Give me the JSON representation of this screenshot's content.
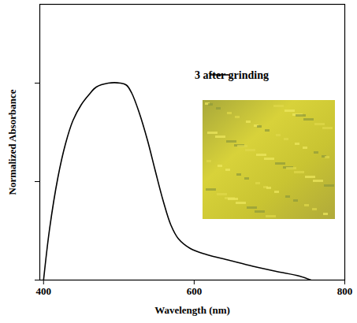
{
  "chart_data": {
    "type": "line",
    "x_label": "Wavelength (nm)",
    "y_label": "Normalized Absorbance",
    "x": [
      400,
      408,
      419,
      429,
      439,
      450,
      460,
      470,
      486,
      502,
      510,
      517,
      527,
      538,
      548,
      559,
      569,
      579,
      595,
      616,
      647,
      678,
      709,
      740,
      755
    ],
    "series": [
      {
        "name": "3 after grinding",
        "color": "#000000",
        "values": [
          0,
          0.26,
          0.52,
          0.69,
          0.81,
          0.89,
          0.94,
          0.98,
          1.0,
          1.0,
          0.99,
          0.95,
          0.85,
          0.71,
          0.56,
          0.4,
          0.28,
          0.21,
          0.16,
          0.13,
          0.1,
          0.07,
          0.044,
          0.02,
          0
        ]
      }
    ],
    "xlim": [
      395,
      800
    ],
    "xticks": [
      400,
      600,
      800
    ],
    "ylim": [
      0,
      1.4
    ],
    "yticks": [
      0,
      0.5,
      1
    ],
    "tick_labels": "x",
    "grid": false,
    "legend": "top-right"
  }
}
